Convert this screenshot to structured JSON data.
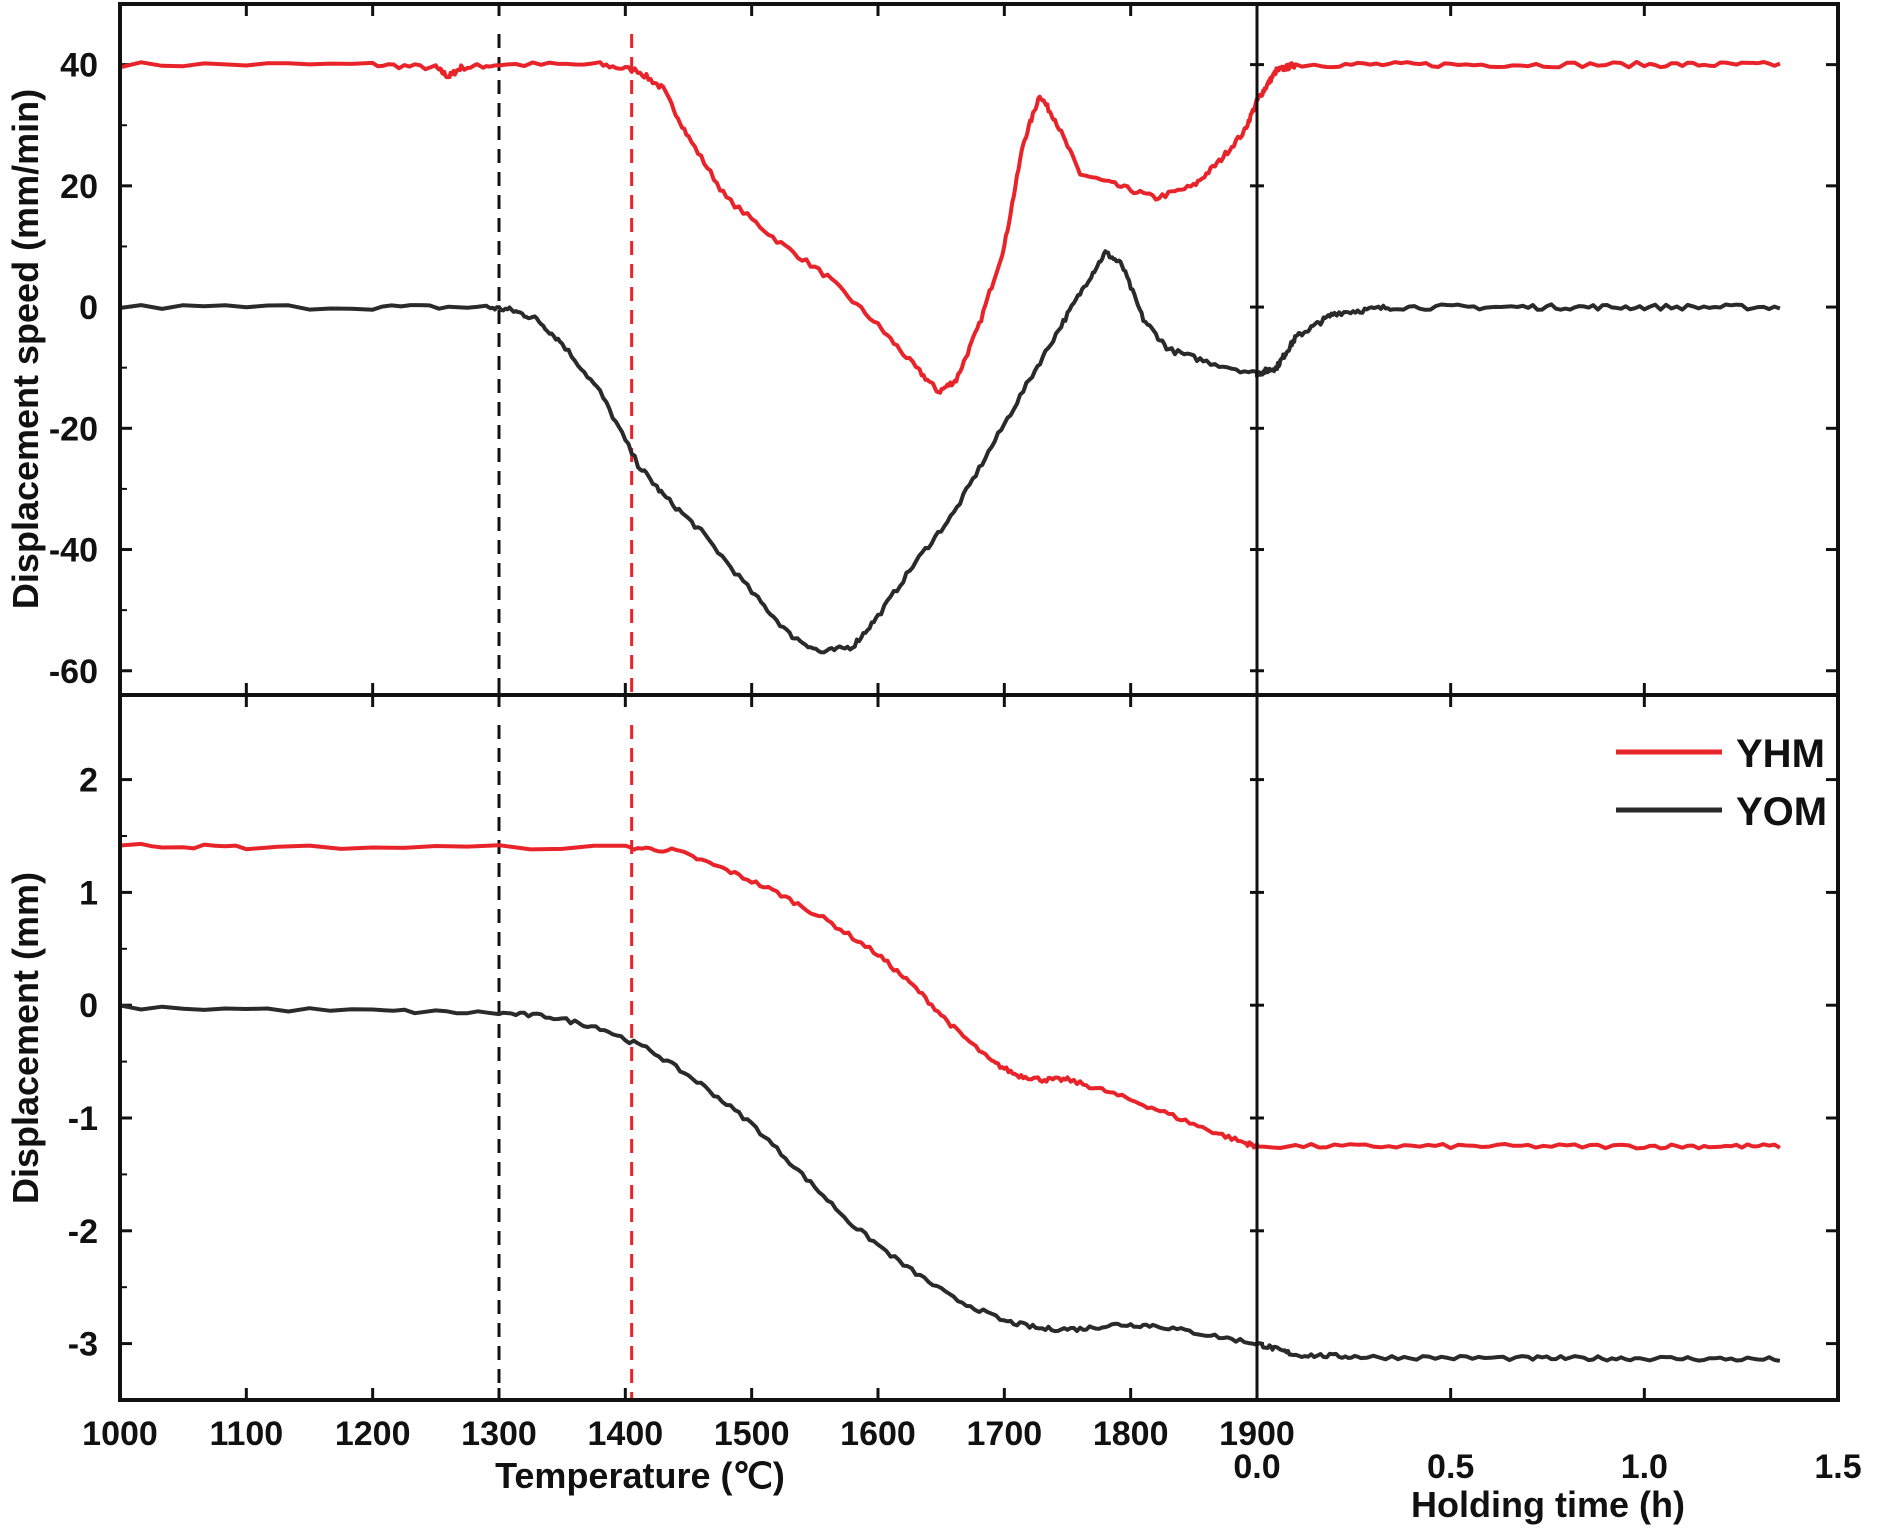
{
  "chart_data": [
    {
      "type": "line",
      "panel": "top",
      "ylabel": "Displacement speed (mm/min)",
      "ylim": [
        -64,
        50
      ],
      "yticks": [
        40,
        20,
        0,
        -20,
        -40,
        -60
      ],
      "ytick_labels": [
        "40",
        "20",
        "0",
        "-20",
        "-40",
        "-60"
      ],
      "xlim_temperature": [
        1000,
        1900
      ],
      "xlim_time": [
        0,
        1.5
      ],
      "reference_lines": [
        {
          "x_temperature": 1300,
          "color": "#111111",
          "style": "dashed"
        },
        {
          "x_temperature": 1405,
          "color": "#e8232a",
          "style": "dashed"
        }
      ],
      "series": [
        {
          "name": "YHM",
          "color": "#e8232a",
          "temperature_points": [
            [
              1000,
              40
            ],
            [
              1200,
              40
            ],
            [
              1250,
              39.5
            ],
            [
              1260,
              38
            ],
            [
              1270,
              39.5
            ],
            [
              1300,
              40
            ],
            [
              1380,
              40
            ],
            [
              1410,
              39
            ],
            [
              1430,
              36
            ],
            [
              1450,
              28
            ],
            [
              1480,
              18
            ],
            [
              1520,
              11
            ],
            [
              1560,
              5
            ],
            [
              1600,
              -3
            ],
            [
              1630,
              -10
            ],
            [
              1648,
              -14
            ],
            [
              1662,
              -12
            ],
            [
              1680,
              -3
            ],
            [
              1700,
              10
            ],
            [
              1715,
              27
            ],
            [
              1728,
              35
            ],
            [
              1740,
              31
            ],
            [
              1760,
              22
            ],
            [
              1790,
              20
            ],
            [
              1820,
              18
            ],
            [
              1850,
              20
            ],
            [
              1870,
              24
            ],
            [
              1890,
              29
            ],
            [
              1900,
              34
            ]
          ],
          "time_points": [
            [
              0,
              34
            ],
            [
              0.05,
              39
            ],
            [
              0.1,
              40
            ],
            [
              0.5,
              40
            ],
            [
              1.0,
              40
            ],
            [
              1.35,
              40
            ]
          ]
        },
        {
          "name": "YOM",
          "color": "#2a2a2a",
          "temperature_points": [
            [
              1000,
              0
            ],
            [
              1200,
              0
            ],
            [
              1290,
              0
            ],
            [
              1310,
              -0.5
            ],
            [
              1330,
              -2
            ],
            [
              1350,
              -6
            ],
            [
              1380,
              -14
            ],
            [
              1410,
              -26
            ],
            [
              1430,
              -31
            ],
            [
              1460,
              -37
            ],
            [
              1500,
              -47
            ],
            [
              1530,
              -54
            ],
            [
              1555,
              -57
            ],
            [
              1580,
              -56
            ],
            [
              1600,
              -51
            ],
            [
              1630,
              -42
            ],
            [
              1660,
              -34
            ],
            [
              1690,
              -23
            ],
            [
              1720,
              -12
            ],
            [
              1745,
              -3
            ],
            [
              1765,
              4
            ],
            [
              1780,
              9
            ],
            [
              1793,
              7
            ],
            [
              1810,
              -2
            ],
            [
              1830,
              -7
            ],
            [
              1860,
              -9
            ],
            [
              1900,
              -11
            ]
          ],
          "time_points": [
            [
              0,
              -11
            ],
            [
              0.05,
              -10
            ],
            [
              0.1,
              -5
            ],
            [
              0.2,
              -1
            ],
            [
              0.35,
              0
            ],
            [
              0.7,
              0
            ],
            [
              1.0,
              0
            ],
            [
              1.35,
              0
            ]
          ]
        }
      ]
    },
    {
      "type": "line",
      "panel": "bottom",
      "ylabel": "Displacement (mm)",
      "ylim": [
        -3.5,
        2.75
      ],
      "yticks": [
        2,
        1,
        0,
        -1,
        -2,
        -3
      ],
      "ytick_labels": [
        "2",
        "1",
        "0",
        "-1",
        "-2",
        "-3"
      ],
      "xlabel": "Temperature (℃)",
      "xlabel2": "Holding time (h)",
      "xlim_temperature": [
        1000,
        1900
      ],
      "xticks_temperature": [
        1000,
        1100,
        1200,
        1300,
        1400,
        1500,
        1600,
        1700,
        1800,
        1900
      ],
      "xtick_labels_temperature": [
        "1000",
        "1100",
        "1200",
        "1300",
        "1400",
        "1500",
        "1600",
        "1700",
        "1800",
        "1900"
      ],
      "xlim_time": [
        0,
        1.5
      ],
      "xticks_time": [
        0.0,
        0.5,
        1.0,
        1.5
      ],
      "xtick_labels_time": [
        "0.0",
        "0.5",
        "1.0",
        "1.5"
      ],
      "reference_lines": [
        {
          "x_temperature": 1300,
          "color": "#111111",
          "style": "dashed"
        },
        {
          "x_temperature": 1405,
          "color": "#e8232a",
          "style": "dashed"
        }
      ],
      "legend": {
        "placement": "top-right",
        "entries": [
          "YHM",
          "YOM"
        ]
      },
      "series": [
        {
          "name": "YHM",
          "color": "#e8232a",
          "temperature_points": [
            [
              1000,
              1.42
            ],
            [
              1100,
              1.4
            ],
            [
              1400,
              1.4
            ],
            [
              1440,
              1.37
            ],
            [
              1480,
              1.2
            ],
            [
              1520,
              1.0
            ],
            [
              1560,
              0.75
            ],
            [
              1600,
              0.45
            ],
            [
              1630,
              0.15
            ],
            [
              1660,
              -0.2
            ],
            [
              1690,
              -0.5
            ],
            [
              1710,
              -0.62
            ],
            [
              1730,
              -0.66
            ],
            [
              1750,
              -0.66
            ],
            [
              1780,
              -0.76
            ],
            [
              1820,
              -0.92
            ],
            [
              1860,
              -1.1
            ],
            [
              1890,
              -1.22
            ],
            [
              1900,
              -1.25
            ]
          ],
          "time_points": [
            [
              0,
              -1.25
            ],
            [
              0.5,
              -1.25
            ],
            [
              1.0,
              -1.25
            ],
            [
              1.35,
              -1.25
            ]
          ]
        },
        {
          "name": "YOM",
          "color": "#2a2a2a",
          "temperature_points": [
            [
              1000,
              -0.02
            ],
            [
              1200,
              -0.05
            ],
            [
              1300,
              -0.07
            ],
            [
              1340,
              -0.1
            ],
            [
              1380,
              -0.2
            ],
            [
              1420,
              -0.4
            ],
            [
              1460,
              -0.7
            ],
            [
              1500,
              -1.05
            ],
            [
              1540,
              -1.5
            ],
            [
              1580,
              -1.95
            ],
            [
              1620,
              -2.3
            ],
            [
              1660,
              -2.6
            ],
            [
              1700,
              -2.8
            ],
            [
              1730,
              -2.87
            ],
            [
              1760,
              -2.87
            ],
            [
              1790,
              -2.83
            ],
            [
              1820,
              -2.84
            ],
            [
              1860,
              -2.92
            ],
            [
              1900,
              -3.0
            ]
          ],
          "time_points": [
            [
              0,
              -3.0
            ],
            [
              0.1,
              -3.1
            ],
            [
              0.3,
              -3.12
            ],
            [
              0.7,
              -3.13
            ],
            [
              1.0,
              -3.13
            ],
            [
              1.35,
              -3.14
            ]
          ]
        }
      ]
    }
  ]
}
